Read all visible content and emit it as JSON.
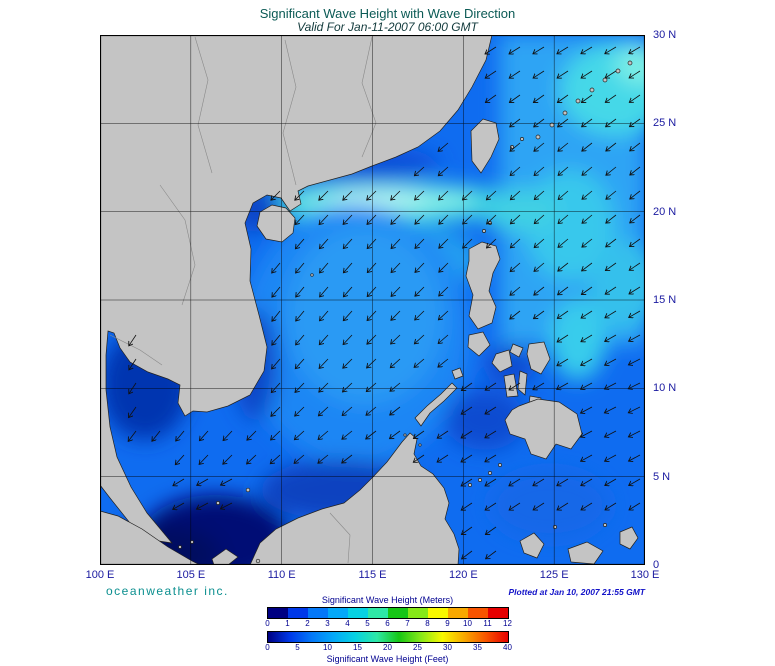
{
  "header": {
    "title": "Significant Wave Height with Wave Direction",
    "subtitle": "Valid For Jan-11-2007 06:00 GMT"
  },
  "map": {
    "x_ticks": [
      "100 E",
      "105 E",
      "110 E",
      "115 E",
      "120 E",
      "125 E",
      "130 E"
    ],
    "y_ticks": [
      "30 N",
      "25 N",
      "20 N",
      "15 N",
      "10 N",
      "5 N",
      "0"
    ],
    "wave_arrows": {
      "pointing": "southwest"
    }
  },
  "footer": {
    "brand": "oceanweather inc.",
    "plotted": "Plotted at Jan 10, 2007 21:55 GMT"
  },
  "legend": {
    "meters_title": "Significant Wave Height (Meters)",
    "feet_title": "Significant Wave Height (Feet)",
    "meters_ticks": [
      "0",
      "1",
      "2",
      "3",
      "4",
      "5",
      "6",
      "7",
      "8",
      "9",
      "10",
      "11",
      "12"
    ],
    "feet_ticks": [
      "0",
      "5",
      "10",
      "15",
      "20",
      "25",
      "30",
      "35",
      "40"
    ],
    "colors": [
      "#000082",
      "#0038e8",
      "#0478f8",
      "#04a8f8",
      "#06d2e2",
      "#2ee8a6",
      "#16c616",
      "#86e818",
      "#f8f800",
      "#f8a800",
      "#f85400",
      "#e60000"
    ],
    "style_colors": {
      "land": "#c4c4c4",
      "ocean_base": "#0f6cf0",
      "axis_text": "#1a1aa0",
      "brand_teal": "#0b8f8f"
    }
  }
}
